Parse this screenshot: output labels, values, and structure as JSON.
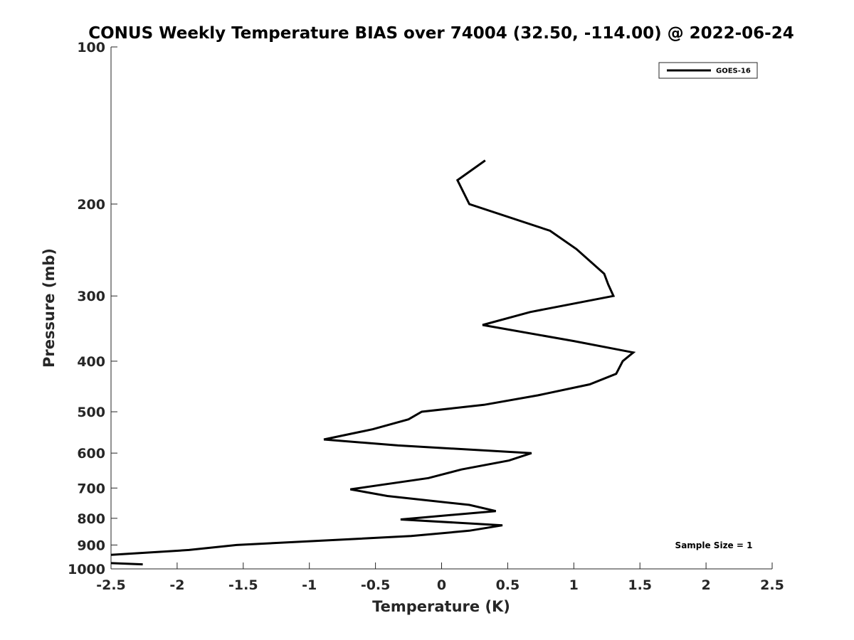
{
  "chart_data": {
    "type": "line",
    "title": "CONUS Weekly Temperature BIAS over 74004 (32.50, -114.00) @ 2022-06-24",
    "xlabel": "Temperature (K)",
    "ylabel": "Pressure (mb)",
    "xlim": [
      -2.5,
      2.5
    ],
    "ylim": [
      100,
      1000
    ],
    "y_scale": "log",
    "y_reversed": true,
    "x_ticks": [
      -2.5,
      -2,
      -1.5,
      -1,
      -0.5,
      0,
      0.5,
      1,
      1.5,
      2,
      2.5
    ],
    "x_tick_labels": [
      "-2.5",
      "-2",
      "-1.5",
      "-1",
      "-0.5",
      "0",
      "0.5",
      "1",
      "1.5",
      "2",
      "2.5"
    ],
    "y_ticks": [
      100,
      200,
      300,
      400,
      500,
      600,
      700,
      800,
      900,
      1000
    ],
    "y_tick_labels": [
      "100",
      "200",
      "300",
      "400",
      "500",
      "600",
      "700",
      "800",
      "900",
      "1000"
    ],
    "grid": false,
    "legend_position": "top-right",
    "series": [
      {
        "name": "GOES-16",
        "color": "#000000",
        "points": [
          {
            "x": 0.33,
            "y": 165
          },
          {
            "x": 0.12,
            "y": 180
          },
          {
            "x": 0.21,
            "y": 200
          },
          {
            "x": 0.82,
            "y": 225
          },
          {
            "x": 1.02,
            "y": 244
          },
          {
            "x": 1.23,
            "y": 272
          },
          {
            "x": 1.26,
            "y": 285
          },
          {
            "x": 1.3,
            "y": 300
          },
          {
            "x": 0.67,
            "y": 322
          },
          {
            "x": 0.31,
            "y": 341
          },
          {
            "x": 1.0,
            "y": 366
          },
          {
            "x": 1.45,
            "y": 385
          },
          {
            "x": 1.37,
            "y": 400
          },
          {
            "x": 1.32,
            "y": 423
          },
          {
            "x": 1.12,
            "y": 443
          },
          {
            "x": 0.73,
            "y": 465
          },
          {
            "x": 0.32,
            "y": 485
          },
          {
            "x": -0.15,
            "y": 500
          },
          {
            "x": -0.25,
            "y": 517
          },
          {
            "x": -0.52,
            "y": 540
          },
          {
            "x": -0.89,
            "y": 565
          },
          {
            "x": -0.33,
            "y": 580
          },
          {
            "x": 0.68,
            "y": 600
          },
          {
            "x": 0.51,
            "y": 620
          },
          {
            "x": 0.15,
            "y": 645
          },
          {
            "x": -0.1,
            "y": 670
          },
          {
            "x": -0.45,
            "y": 690
          },
          {
            "x": -0.69,
            "y": 704
          },
          {
            "x": -0.41,
            "y": 725
          },
          {
            "x": 0.21,
            "y": 754
          },
          {
            "x": 0.41,
            "y": 775
          },
          {
            "x": -0.31,
            "y": 804
          },
          {
            "x": 0.46,
            "y": 825
          },
          {
            "x": 0.21,
            "y": 845
          },
          {
            "x": -0.23,
            "y": 865
          },
          {
            "x": -1.55,
            "y": 900
          },
          {
            "x": -1.91,
            "y": 920
          },
          {
            "x": -2.5,
            "y": 940
          }
        ],
        "extra_segment": [
          {
            "x": -2.5,
            "y": 975
          },
          {
            "x": -2.26,
            "y": 980
          }
        ]
      }
    ],
    "annotations": [
      {
        "text": "Sample Size = 1",
        "position": "bottom-right"
      }
    ]
  }
}
